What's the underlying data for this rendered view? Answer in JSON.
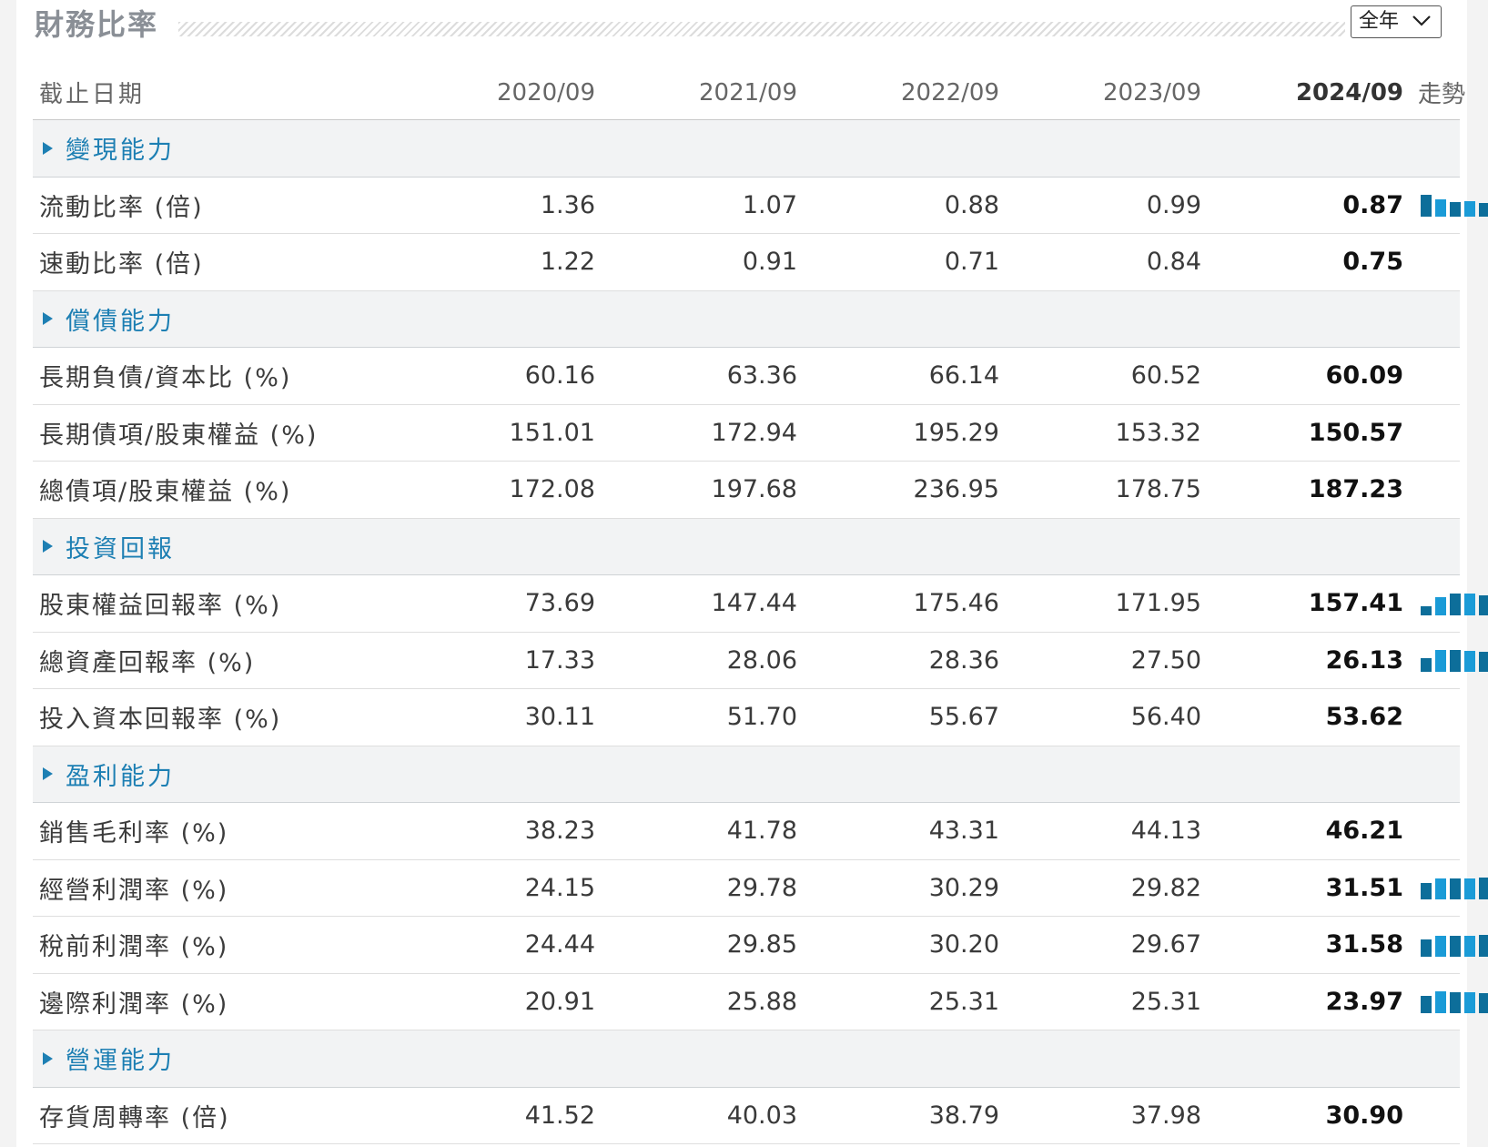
{
  "header": {
    "title": "財務比率",
    "period_select": "全年"
  },
  "columns": {
    "label": "截止日期",
    "years": [
      "2020/09",
      "2021/09",
      "2022/09",
      "2023/09",
      "2024/09"
    ],
    "trend": "走勢"
  },
  "colors": {
    "accent": "#1d7fb3",
    "spark_dark": "#0d6e9a",
    "spark_light": "#1a9bd7"
  },
  "sections": [
    {
      "title": "變現能力",
      "rows": [
        {
          "label": "流動比率 (倍)",
          "values": [
            "1.36",
            "1.07",
            "0.88",
            "0.99",
            "0.87"
          ],
          "trend": true
        },
        {
          "label": "速動比率 (倍)",
          "values": [
            "1.22",
            "0.91",
            "0.71",
            "0.84",
            "0.75"
          ],
          "trend": false
        }
      ]
    },
    {
      "title": "償債能力",
      "rows": [
        {
          "label": "長期負債/資本比 (%)",
          "values": [
            "60.16",
            "63.36",
            "66.14",
            "60.52",
            "60.09"
          ],
          "trend": false
        },
        {
          "label": "長期債項/股東權益 (%)",
          "values": [
            "151.01",
            "172.94",
            "195.29",
            "153.32",
            "150.57"
          ],
          "trend": false
        },
        {
          "label": "總債項/股東權益 (%)",
          "values": [
            "172.08",
            "197.68",
            "236.95",
            "178.75",
            "187.23"
          ],
          "trend": false
        }
      ]
    },
    {
      "title": "投資回報",
      "rows": [
        {
          "label": "股東權益回報率 (%)",
          "values": [
            "73.69",
            "147.44",
            "175.46",
            "171.95",
            "157.41"
          ],
          "trend": true
        },
        {
          "label": "總資產回報率 (%)",
          "values": [
            "17.33",
            "28.06",
            "28.36",
            "27.50",
            "26.13"
          ],
          "trend": true
        },
        {
          "label": "投入資本回報率 (%)",
          "values": [
            "30.11",
            "51.70",
            "55.67",
            "56.40",
            "53.62"
          ],
          "trend": false
        }
      ]
    },
    {
      "title": "盈利能力",
      "rows": [
        {
          "label": "銷售毛利率 (%)",
          "values": [
            "38.23",
            "41.78",
            "43.31",
            "44.13",
            "46.21"
          ],
          "trend": false
        },
        {
          "label": "經營利潤率 (%)",
          "values": [
            "24.15",
            "29.78",
            "30.29",
            "29.82",
            "31.51"
          ],
          "trend": true
        },
        {
          "label": "稅前利潤率 (%)",
          "values": [
            "24.44",
            "29.85",
            "30.20",
            "29.67",
            "31.58"
          ],
          "trend": true
        },
        {
          "label": "邊際利潤率 (%)",
          "values": [
            "20.91",
            "25.88",
            "25.31",
            "25.31",
            "23.97"
          ],
          "trend": true
        }
      ]
    },
    {
      "title": "營運能力",
      "rows": [
        {
          "label": "存貨周轉率 (倍)",
          "values": [
            "41.52",
            "40.03",
            "38.79",
            "37.98",
            "30.90"
          ],
          "trend": false
        }
      ]
    }
  ]
}
